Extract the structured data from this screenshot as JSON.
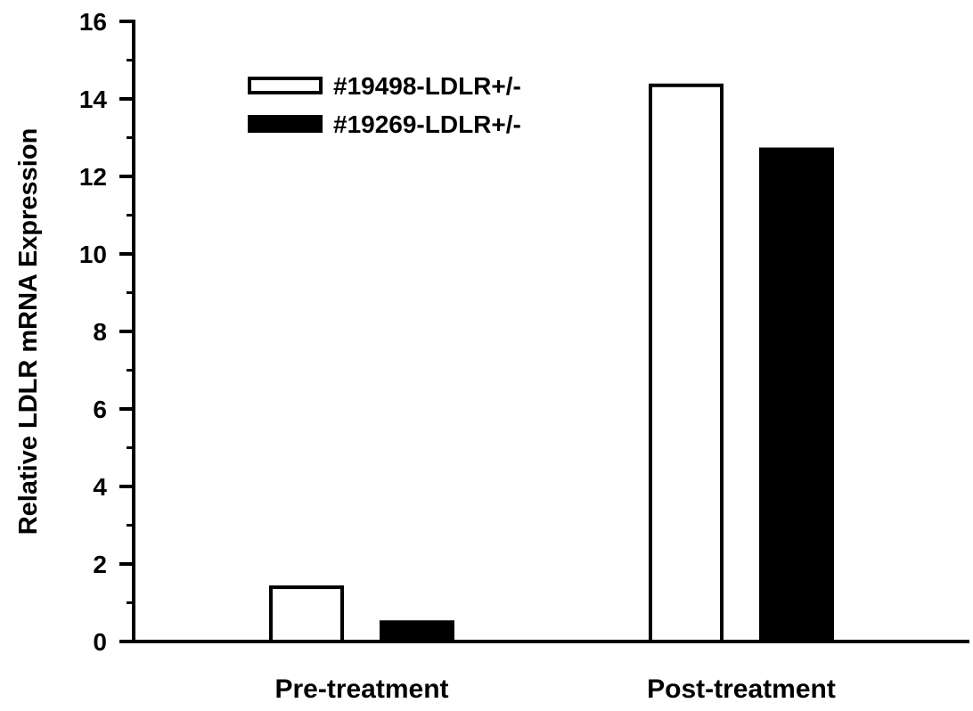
{
  "chart_data": {
    "type": "bar",
    "title": "",
    "xlabel": "",
    "ylabel": "Relative LDLR mRNA Expression",
    "ylim": [
      0,
      16
    ],
    "y_major_ticks": [
      0,
      2,
      4,
      6,
      8,
      10,
      12,
      14,
      16
    ],
    "y_minor_step": 1,
    "categories": [
      "Pre-treatment",
      "Post-treatment"
    ],
    "series": [
      {
        "name": "#19498-LDLR+/-",
        "fill": "#ffffff",
        "stroke": "#000000",
        "values": [
          1.4,
          14.35
        ]
      },
      {
        "name": "#19269-LDLR+/-",
        "fill": "#000000",
        "stroke": "#000000",
        "values": [
          0.5,
          12.7
        ]
      }
    ],
    "legend_position": "top-left",
    "grid": false
  }
}
